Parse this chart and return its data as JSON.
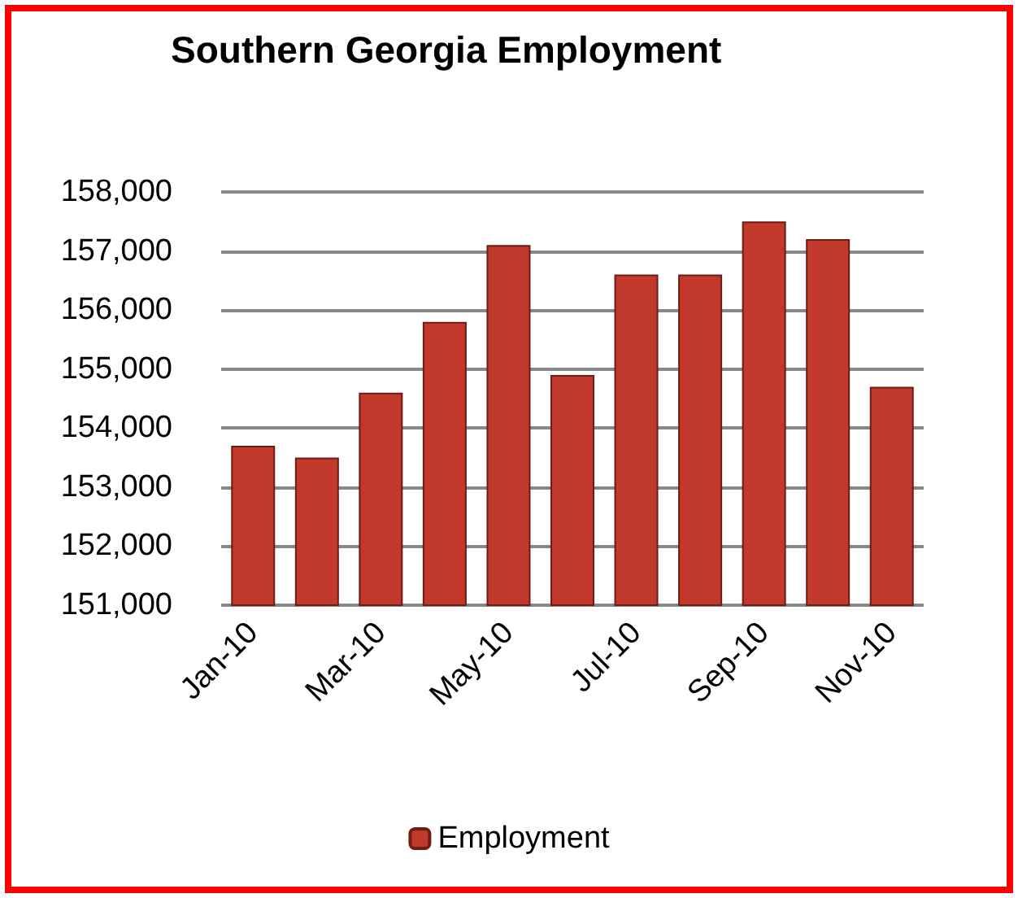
{
  "chart_data": {
    "type": "bar",
    "title": "Southern Georgia Employment",
    "categories": [
      "Jan-10",
      null,
      "Mar-10",
      null,
      "May-10",
      null,
      "Jul-10",
      null,
      "Sep-10",
      null,
      "Nov-10"
    ],
    "series": [
      {
        "name": "Employment",
        "color": "#c0392b",
        "values": [
          153700,
          153500,
          154600,
          155800,
          157100,
          154900,
          156600,
          156600,
          157500,
          157200,
          154700
        ]
      }
    ],
    "ylim": [
      151000,
      158000
    ],
    "yticks": [
      {
        "value": 151000,
        "label": "151,000"
      },
      {
        "value": 152000,
        "label": "152,000"
      },
      {
        "value": 153000,
        "label": "153,000"
      },
      {
        "value": 154000,
        "label": "154,000"
      },
      {
        "value": 155000,
        "label": "155,000"
      },
      {
        "value": 156000,
        "label": "156,000"
      },
      {
        "value": 157000,
        "label": "157,000"
      },
      {
        "value": 158000,
        "label": "158,000"
      }
    ],
    "grid": "y",
    "legend": "bottom"
  }
}
